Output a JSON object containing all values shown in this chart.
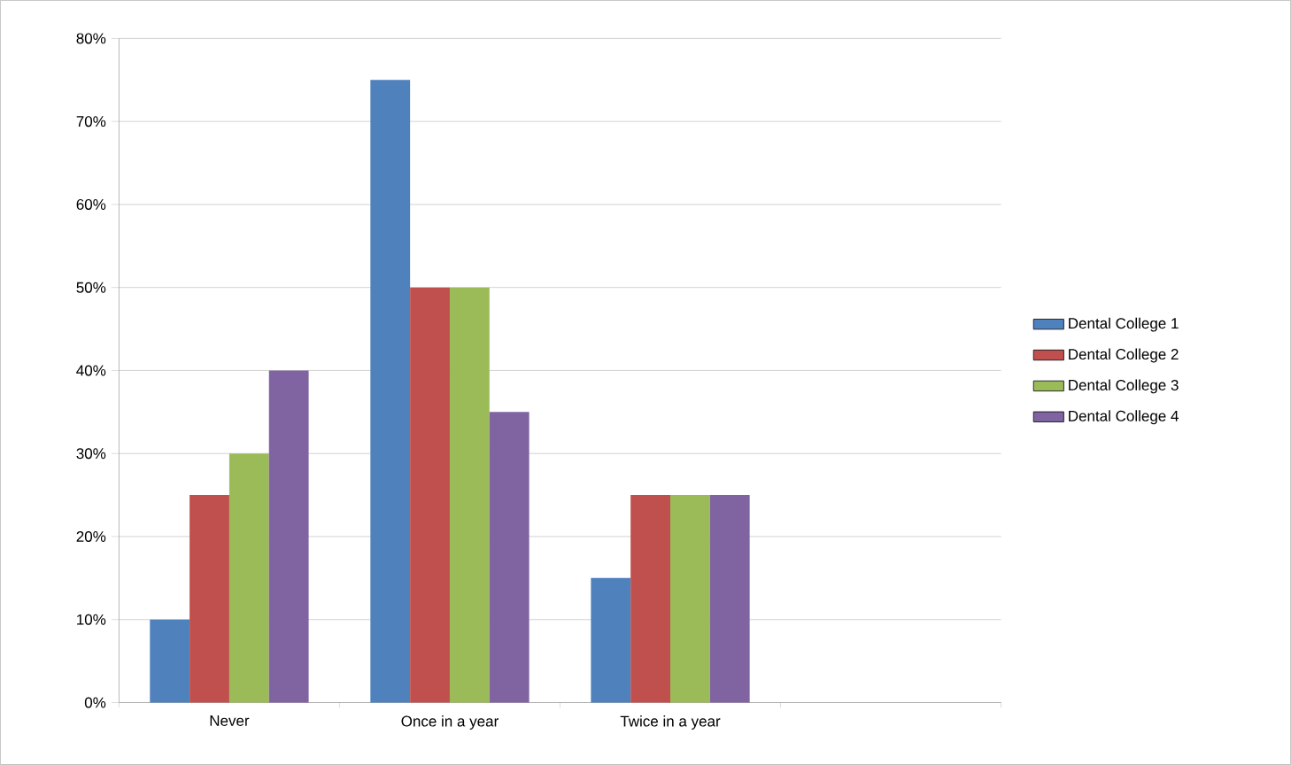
{
  "chart_data": {
    "type": "bar",
    "categories": [
      "Never",
      "Once in a year",
      "Twice in a year",
      null
    ],
    "series": [
      {
        "name": "Dental College 1",
        "color": "#4f81bd",
        "values": [
          10,
          75,
          15,
          null
        ]
      },
      {
        "name": "Dental College 2",
        "color": "#c0504d",
        "values": [
          25,
          50,
          25,
          null
        ]
      },
      {
        "name": "Dental College 3",
        "color": "#9bbb59",
        "values": [
          30,
          50,
          25,
          null
        ]
      },
      {
        "name": "Dental College 4",
        "color": "#8064a2",
        "values": [
          40,
          35,
          25,
          null
        ]
      }
    ],
    "ylim": [
      0,
      80
    ],
    "yticks": [
      {
        "value": 0,
        "label": "0%"
      },
      {
        "value": 10,
        "label": "10%"
      },
      {
        "value": 20,
        "label": "20%"
      },
      {
        "value": 30,
        "label": "30%"
      },
      {
        "value": 40,
        "label": "40%"
      },
      {
        "value": 50,
        "label": "50%"
      },
      {
        "value": 60,
        "label": "60%"
      },
      {
        "value": 70,
        "label": "70%"
      },
      {
        "value": 80,
        "label": "80%"
      }
    ],
    "grid": "y",
    "legend": "right"
  }
}
